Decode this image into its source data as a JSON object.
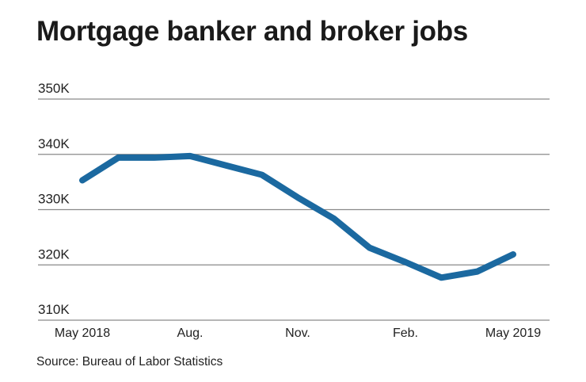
{
  "chart_data": {
    "type": "line",
    "title": "Mortgage banker and broker jobs",
    "source": "Source: Bureau of Labor Statistics",
    "xlabel": "",
    "ylabel": "",
    "x": [
      "May 2018",
      "Jun 2018",
      "Jul 2018",
      "Aug 2018",
      "Sep 2018",
      "Oct 2018",
      "Nov 2018",
      "Dec 2018",
      "Jan 2019",
      "Feb 2019",
      "Mar 2019",
      "Apr 2019",
      "May 2019"
    ],
    "x_tick_labels": [
      {
        "index": 0,
        "label": "May 2018"
      },
      {
        "index": 3,
        "label": "Aug."
      },
      {
        "index": 6,
        "label": "Nov."
      },
      {
        "index": 9,
        "label": "Feb."
      },
      {
        "index": 12,
        "label": "May 2019"
      }
    ],
    "y_ticks": [
      310,
      320,
      330,
      340,
      350
    ],
    "y_tick_labels": [
      "310K",
      "320K",
      "330K",
      "340K",
      "350K"
    ],
    "ylim": [
      310,
      350
    ],
    "grid": true,
    "series": [
      {
        "name": "Mortgage banker and broker jobs (thousands)",
        "color": "#1b69a0",
        "values": [
          335.3,
          339.4,
          339.4,
          339.7,
          338.0,
          336.3,
          332.2,
          328.4,
          323.1,
          320.5,
          317.7,
          318.8,
          321.9
        ]
      }
    ]
  }
}
